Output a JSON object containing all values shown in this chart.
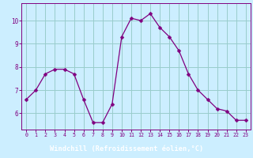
{
  "x": [
    0,
    1,
    2,
    3,
    4,
    5,
    6,
    7,
    8,
    9,
    10,
    11,
    12,
    13,
    14,
    15,
    16,
    17,
    18,
    19,
    20,
    21,
    22,
    23
  ],
  "y": [
    6.6,
    7.0,
    7.7,
    7.9,
    7.9,
    7.7,
    6.6,
    5.6,
    5.6,
    6.4,
    9.3,
    10.1,
    10.0,
    10.3,
    9.7,
    9.3,
    8.7,
    7.7,
    7.0,
    6.6,
    6.2,
    6.1,
    5.7,
    5.7
  ],
  "line_color": "#800080",
  "marker": "D",
  "marker_size": 2.5,
  "bg_color": "#cceeff",
  "grid_color": "#99cccc",
  "xlim": [
    -0.5,
    23.5
  ],
  "ylim": [
    5.3,
    10.75
  ],
  "yticks": [
    6,
    7,
    8,
    9,
    10
  ],
  "xticks": [
    0,
    1,
    2,
    3,
    4,
    5,
    6,
    7,
    8,
    9,
    10,
    11,
    12,
    13,
    14,
    15,
    16,
    17,
    18,
    19,
    20,
    21,
    22,
    23
  ],
  "tick_label_color": "#800080",
  "xlabel_bg": "#800080",
  "xlabel_text": "Windchill (Refroidissement éolien,°C)",
  "xlabel_text_color": "#ffffff",
  "spine_color": "#800080"
}
